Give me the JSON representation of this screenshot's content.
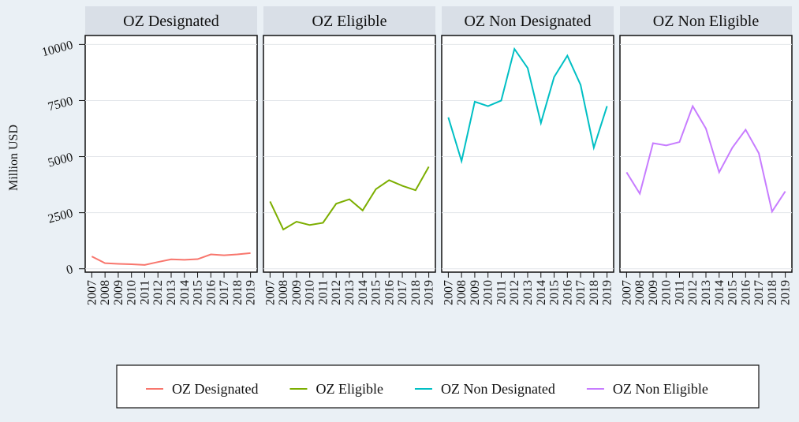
{
  "chart_data": {
    "type": "line",
    "ylabel": "Million USD",
    "x": [
      2007,
      2008,
      2009,
      2010,
      2011,
      2012,
      2013,
      2014,
      2015,
      2016,
      2017,
      2018,
      2019
    ],
    "xlim": [
      2006.5,
      2019.5
    ],
    "xticks": [
      2007,
      2008,
      2009,
      2010,
      2011,
      2012,
      2013,
      2014,
      2015,
      2016,
      2017,
      2018,
      2019
    ],
    "ylim": [
      -150,
      10400
    ],
    "yticks": [
      0,
      2500,
      5000,
      7500,
      10000
    ],
    "grid": true,
    "legend": "bottom",
    "series": [
      {
        "name": "OZ Designated",
        "color": "#f8766d",
        "values": [
          550,
          250,
          220,
          200,
          170,
          300,
          420,
          400,
          430,
          640,
          600,
          640,
          700
        ]
      },
      {
        "name": "OZ Eligible",
        "color": "#7cae00",
        "values": [
          3000,
          1750,
          2100,
          1950,
          2050,
          2900,
          3100,
          2600,
          3550,
          3950,
          3700,
          3500,
          4550
        ]
      },
      {
        "name": "OZ Non Designated",
        "color": "#00bfc4",
        "values": [
          6750,
          4800,
          7450,
          7250,
          7500,
          9800,
          8950,
          6500,
          8550,
          9500,
          8200,
          5400,
          7250
        ]
      },
      {
        "name": "OZ Non Eligible",
        "color": "#c77cff",
        "values": [
          4300,
          3350,
          5600,
          5500,
          5650,
          7250,
          6250,
          4300,
          5400,
          6200,
          5150,
          2550,
          3450
        ]
      }
    ]
  }
}
